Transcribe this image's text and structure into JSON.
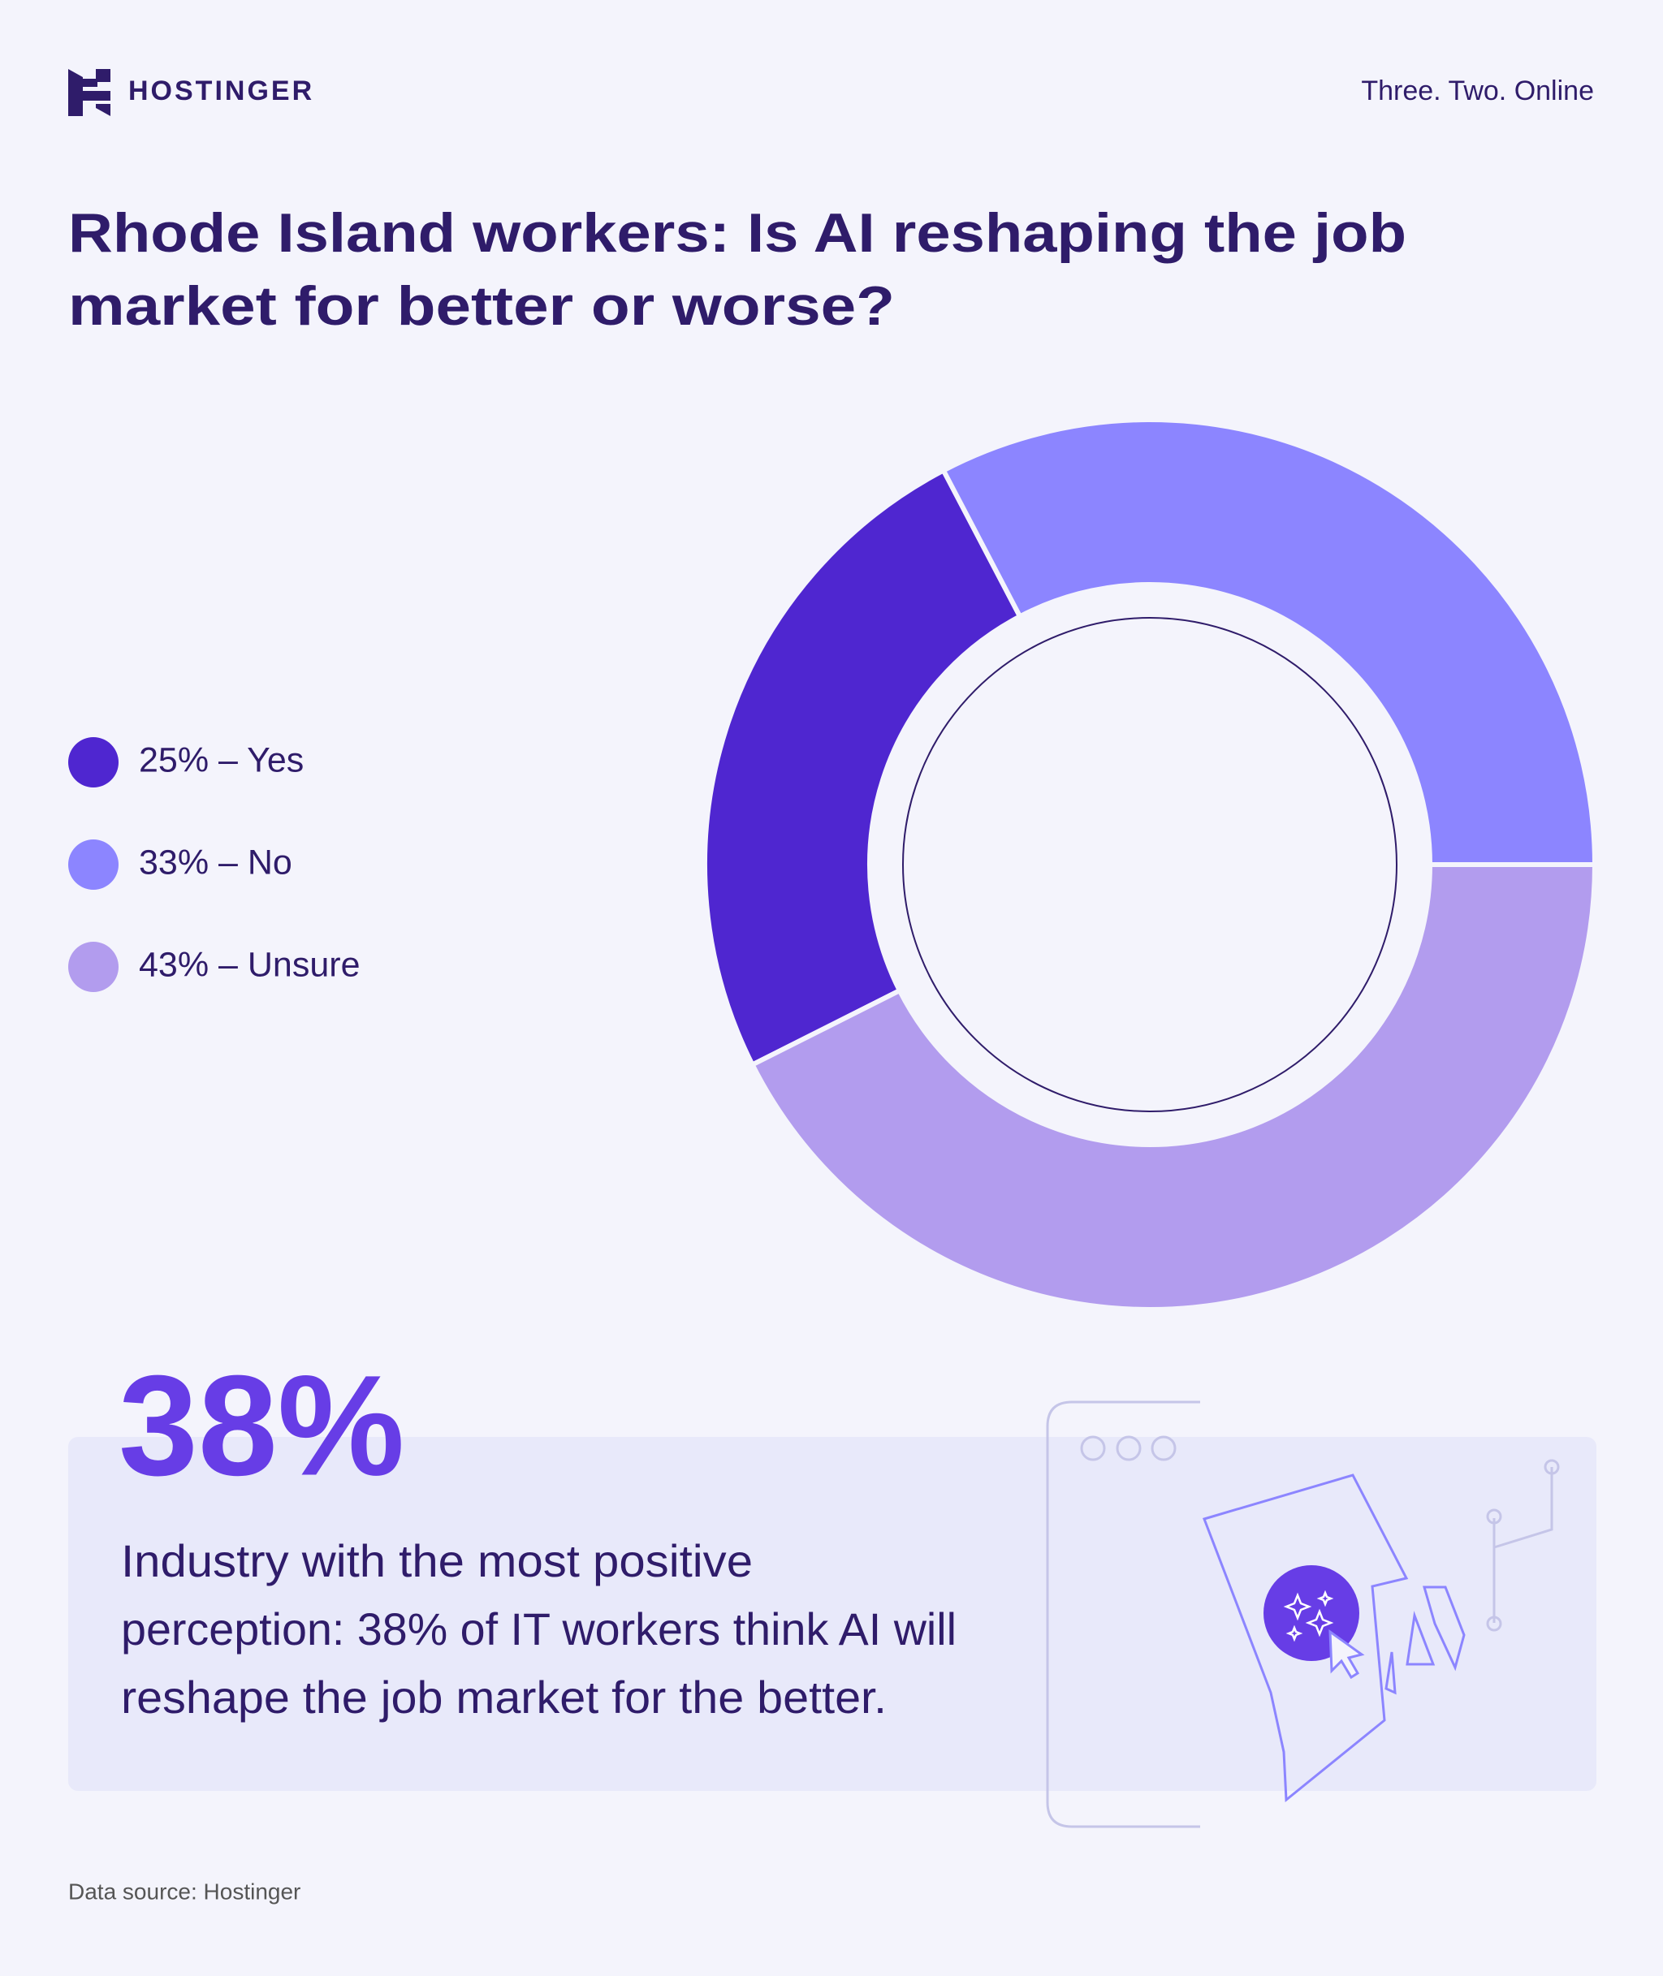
{
  "brand": "HOSTINGER",
  "tagline": "Three. Two. Online",
  "chart_data": {
    "type": "donut",
    "title": [
      "Rhode Island workers: Is AI reshaping the job",
      "market for better or worse?"
    ],
    "categories": [
      "25% – Yes",
      "33% – No",
      "43% – Unsure"
    ],
    "values": [
      25,
      33,
      43
    ],
    "colors": [
      "#4f26d0",
      "#8c85ff",
      "#b29cee"
    ]
  },
  "callout": {
    "stat": "38%",
    "lines": [
      "Industry with the most positive",
      "perception: 38% of IT workers think AI will",
      "reshape the job market for the better."
    ]
  },
  "footer": "Data source: Hostinger"
}
